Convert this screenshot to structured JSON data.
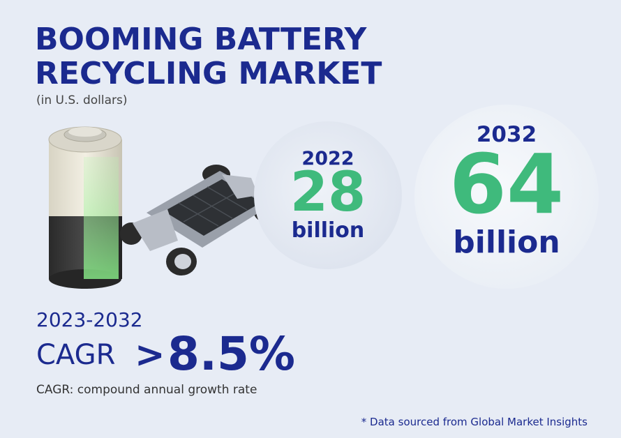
{
  "title": [
    "BOOMING BATTERY",
    "RECYCLING MARKET"
  ],
  "subtitle": "(in U.S. dollars)",
  "stats": [
    {
      "year": "2022",
      "value": "28",
      "unit": "billion"
    },
    {
      "year": "2032",
      "value": "64",
      "unit": "billion"
    }
  ],
  "cagr": {
    "period": "2023-2032",
    "label": "CAGR",
    "symbol": ">",
    "value": "8.5%",
    "note": "CAGR: compound annual growth rate"
  },
  "source": "* Data sourced from Global Market Insights"
}
